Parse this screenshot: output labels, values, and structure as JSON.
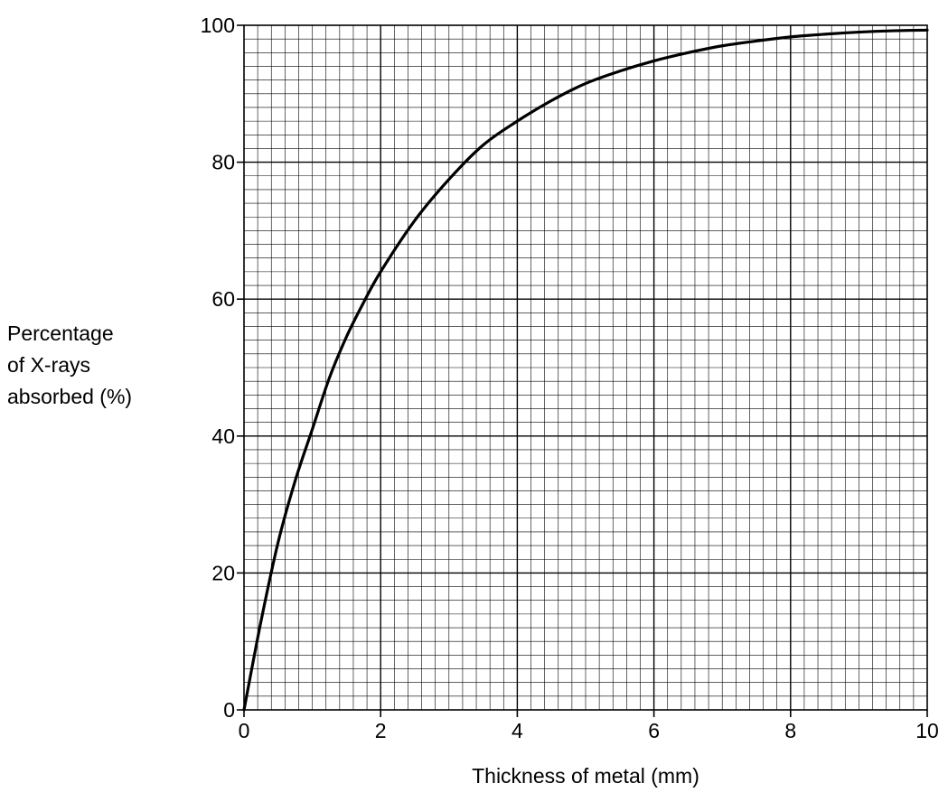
{
  "chart_data": {
    "type": "line",
    "xlabel": "Thickness of metal (mm)",
    "ylabel_lines": [
      "Percentage",
      "of X-rays",
      "absorbed (%)"
    ],
    "xlim": [
      0,
      10
    ],
    "ylim": [
      0,
      100
    ],
    "x_ticks": [
      0,
      2,
      4,
      6,
      8,
      10
    ],
    "y_ticks": [
      0,
      20,
      40,
      60,
      80,
      100
    ],
    "x_tick_labels": [
      "0",
      "2",
      "4",
      "6",
      "8",
      "10"
    ],
    "y_tick_labels": [
      "0",
      "20",
      "40",
      "60",
      "80",
      "100"
    ],
    "grid": true,
    "grid_minor_step_x": 0.2,
    "grid_minor_step_y": 2,
    "grid_major_step_x": 2,
    "grid_major_step_y": 20,
    "series": [
      {
        "color": "#000000",
        "x": [
          0,
          0.25,
          0.5,
          0.75,
          1,
          1.25,
          1.5,
          1.75,
          2,
          2.5,
          3,
          3.5,
          4,
          4.5,
          5,
          5.5,
          6,
          6.5,
          7,
          7.5,
          8,
          8.5,
          9,
          9.5,
          10
        ],
        "y": [
          0,
          13,
          24.5,
          33.5,
          41,
          48.5,
          54.5,
          59.5,
          64,
          71.5,
          77.5,
          82.5,
          86,
          89,
          91.5,
          93.3,
          94.8,
          96,
          97,
          97.7,
          98.3,
          98.7,
          99,
          99.2,
          99.3
        ]
      }
    ]
  }
}
